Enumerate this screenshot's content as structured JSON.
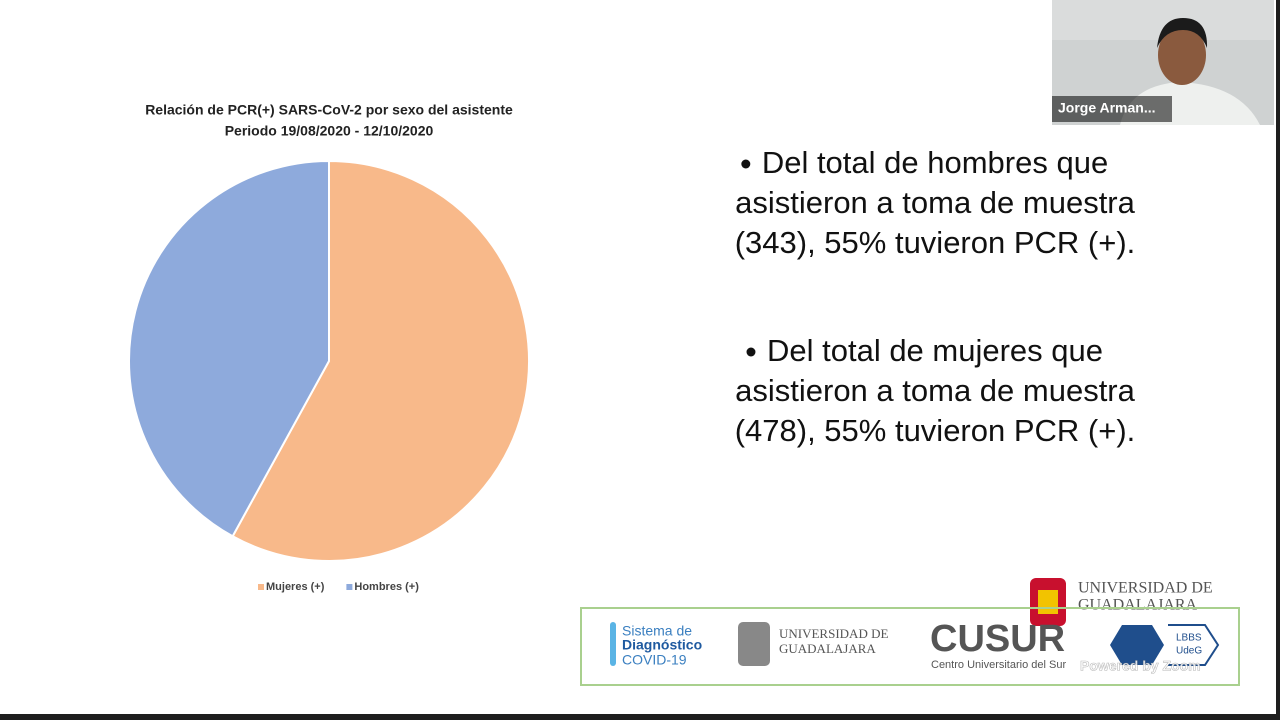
{
  "participant": {
    "name": "Jorge Arman..."
  },
  "chart_data": {
    "type": "pie",
    "title": "Relación de PCR(+) SARS-CoV-2 por sexo del asistente",
    "subtitle": "Periodo 19/08/2020 - 12/10/2020",
    "categories": [
      "Mujeres (+)",
      "Hombres (+)"
    ],
    "values": [
      58,
      42
    ],
    "colors": [
      "#f8b98a",
      "#8eaadc"
    ],
    "legend": "bottom"
  },
  "bullets": [
    [
      "Del total de hombres que",
      "asistieron a toma de muestra",
      "(343), 55% tuvieron PCR (+)."
    ],
    [
      "Del total de mujeres que",
      "asistieron a toma de muestra",
      "(478), 55% tuvieron PCR (+)."
    ]
  ],
  "logos": {
    "top_udg": [
      "UNIVERSIDAD DE",
      "GUADALAJARA"
    ],
    "sistema": [
      "Sistema de",
      "Diagnóstico",
      "COVID-19"
    ],
    "udg": [
      "UNIVERSIDAD DE",
      "GUADALAJARA"
    ],
    "cusur": "CUSUR",
    "cusur_sub": "Centro Universitario del Sur",
    "lbbs": [
      "LBBS",
      "UdeG"
    ],
    "watermark": "Powered by Zoom"
  }
}
